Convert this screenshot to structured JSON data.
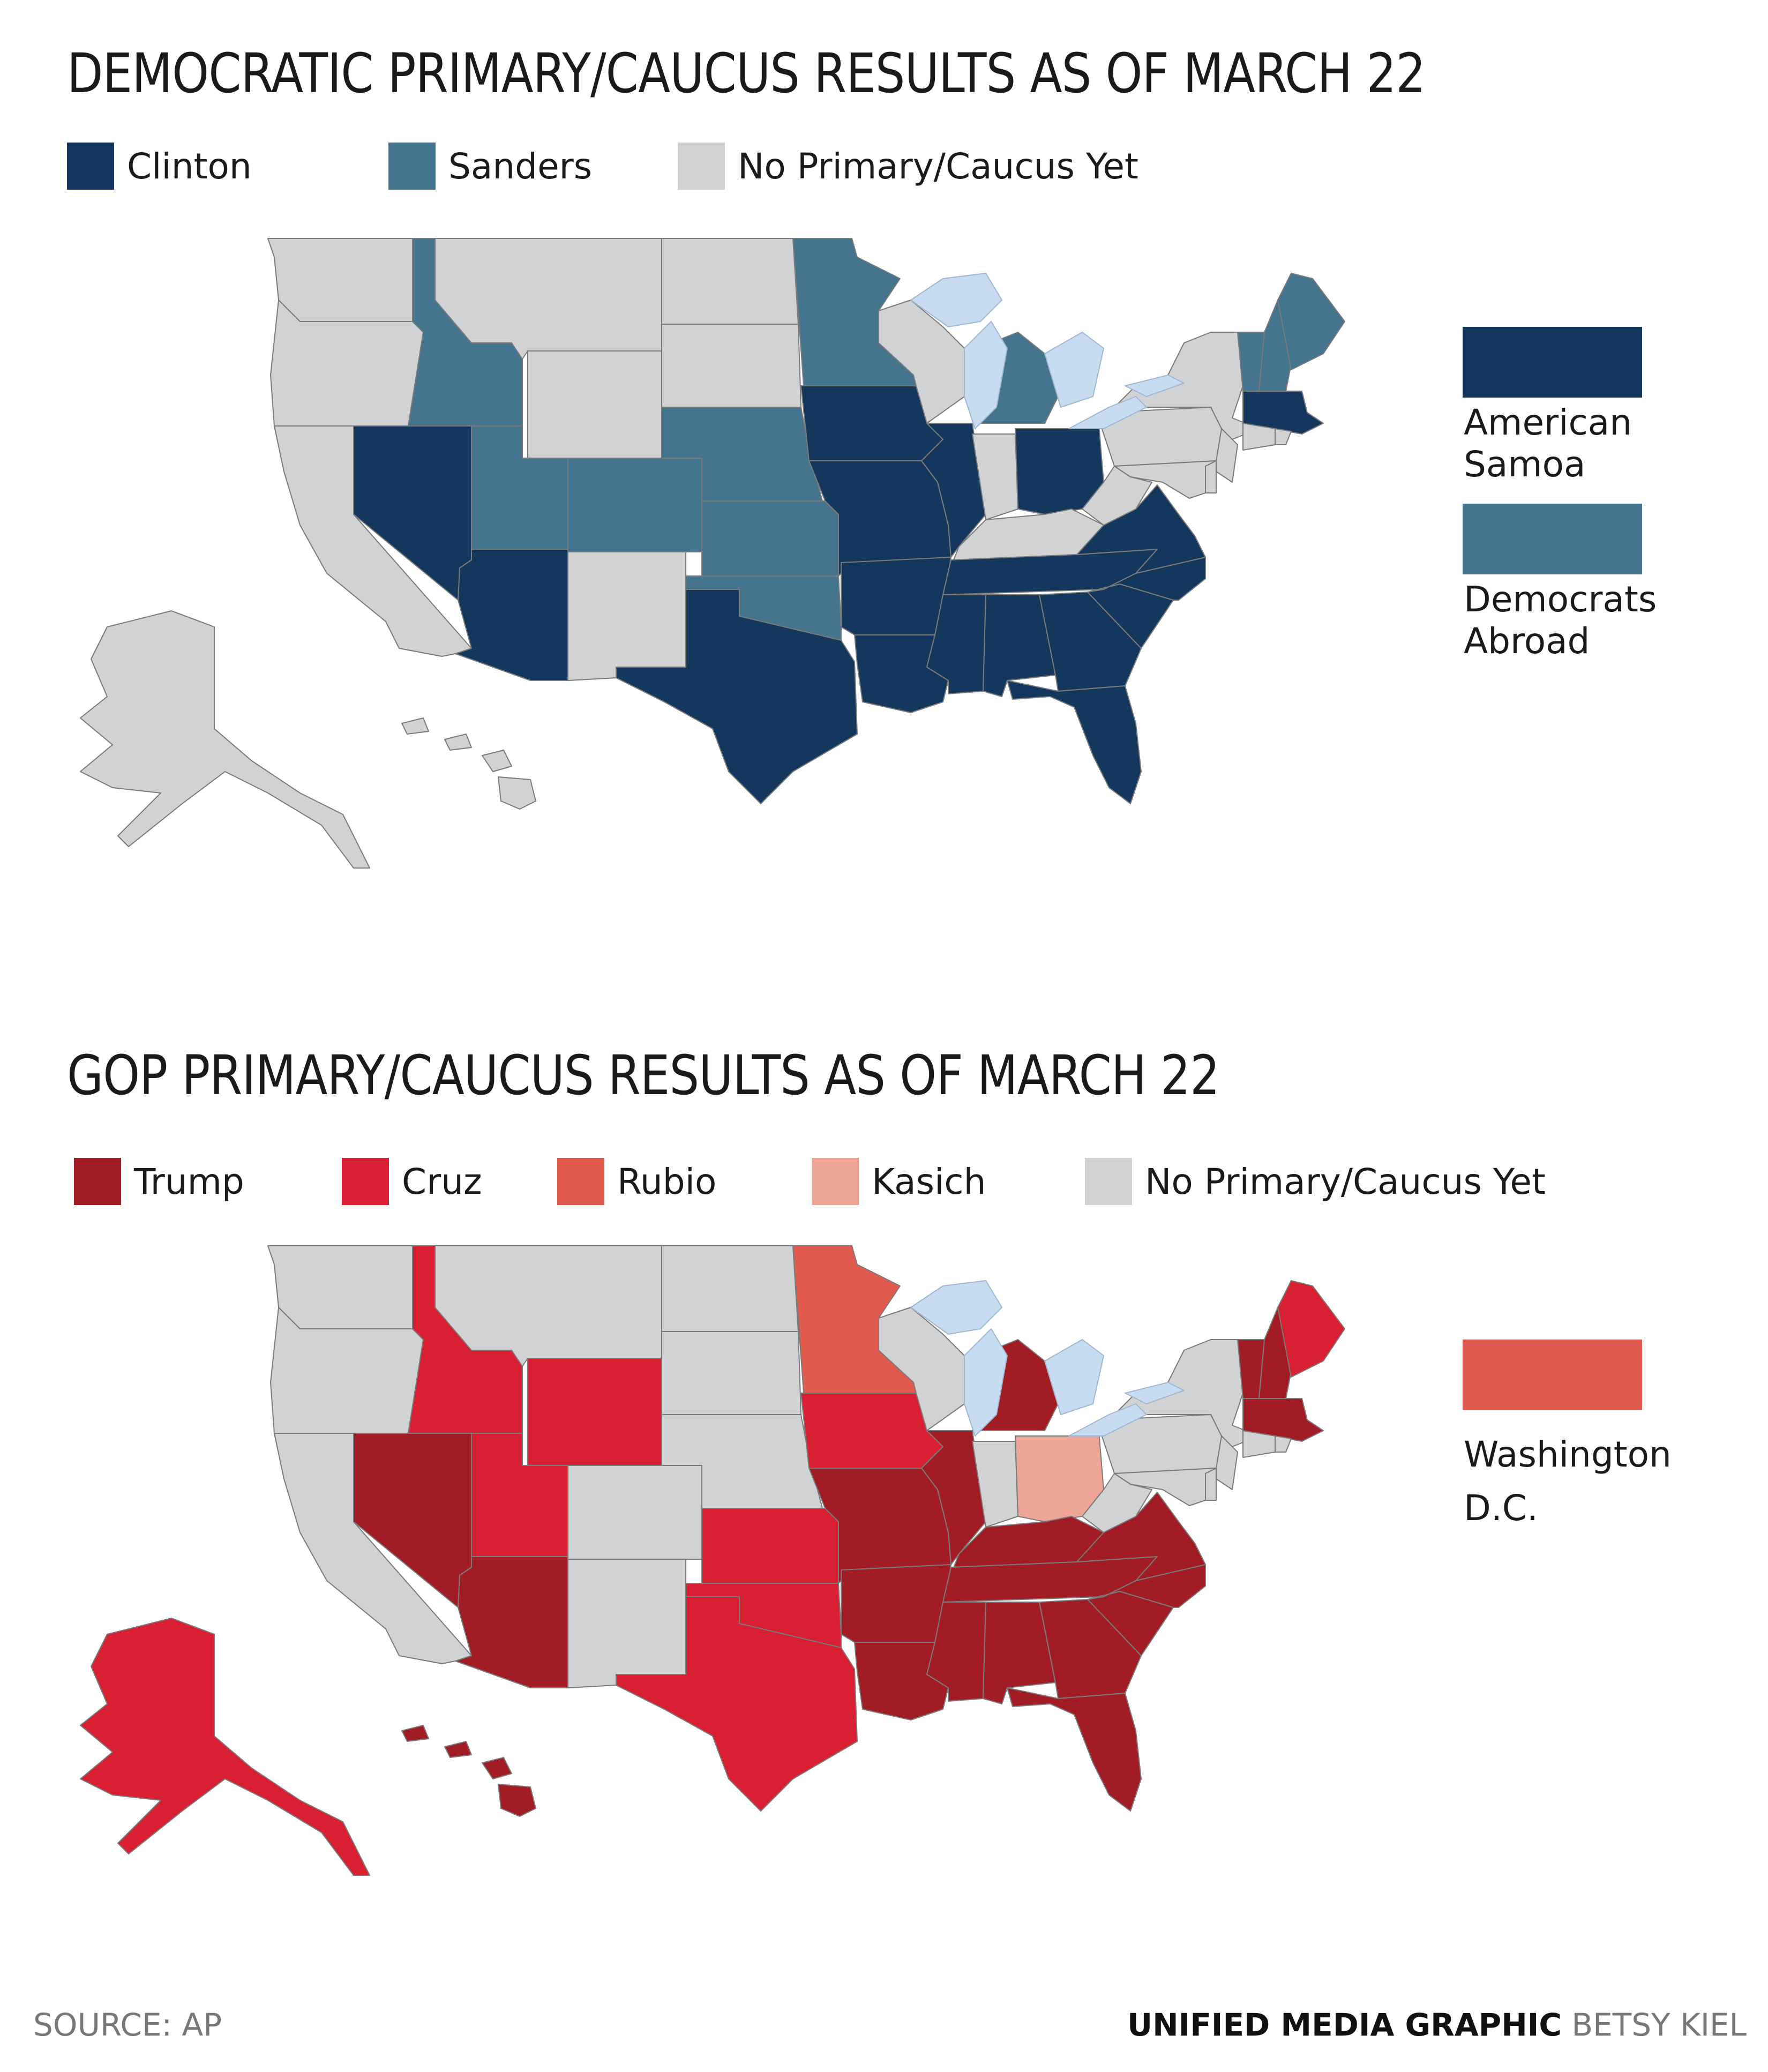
{
  "colors": {
    "clinton": "#14375e",
    "sanders": "#45758e",
    "none": "#d1d2d4",
    "trump": "#a11c24",
    "cruz": "#d91f32",
    "rubio": "#e05a4e",
    "kasich": "#efa595",
    "lake": "#c8dcf1"
  },
  "dem": {
    "title": "DEMOCRATIC PRIMARY/CAUCUS RESULTS AS OF MARCH 22",
    "legend": [
      {
        "label": "Clinton",
        "key": "clinton"
      },
      {
        "label": "Sanders",
        "key": "sanders"
      },
      {
        "label": "No Primary/Caucus Yet",
        "key": "none"
      }
    ],
    "extras": [
      {
        "label": "American\nSamoa",
        "key": "clinton"
      },
      {
        "label": "Democrats\nAbroad",
        "key": "sanders"
      }
    ],
    "results": {
      "WA": "none",
      "OR": "none",
      "CA": "none",
      "NV": "clinton",
      "ID": "sanders",
      "MT": "none",
      "WY": "none",
      "UT": "sanders",
      "AZ": "clinton",
      "CO": "sanders",
      "NM": "none",
      "ND": "none",
      "SD": "none",
      "NE": "sanders",
      "KS": "sanders",
      "OK": "sanders",
      "TX": "clinton",
      "MN": "sanders",
      "IA": "clinton",
      "MO": "clinton",
      "AR": "clinton",
      "LA": "clinton",
      "WI": "none",
      "IL": "clinton",
      "MI": "sanders",
      "IN": "none",
      "OH": "clinton",
      "KY": "none",
      "TN": "clinton",
      "MS": "clinton",
      "AL": "clinton",
      "GA": "clinton",
      "FL": "clinton",
      "SC": "clinton",
      "NC": "clinton",
      "VA": "clinton",
      "WV": "none",
      "PA": "none",
      "NY": "none",
      "VT": "sanders",
      "NH": "sanders",
      "ME": "sanders",
      "MA": "clinton",
      "NJ": "none",
      "MD": "none",
      "DE": "none",
      "CT": "none",
      "RI": "none",
      "AK": "none",
      "HI": "none"
    }
  },
  "gop": {
    "title": "GOP PRIMARY/CAUCUS RESULTS AS OF MARCH 22",
    "legend": [
      {
        "label": "Trump",
        "key": "trump"
      },
      {
        "label": "Cruz",
        "key": "cruz"
      },
      {
        "label": "Rubio",
        "key": "rubio"
      },
      {
        "label": "Kasich",
        "key": "kasich"
      },
      {
        "label": "No Primary/Caucus Yet",
        "key": "none"
      }
    ],
    "extras": [
      {
        "label": "Washington\nD.C.",
        "key": "rubio"
      }
    ],
    "results": {
      "WA": "none",
      "OR": "none",
      "CA": "none",
      "NV": "trump",
      "ID": "cruz",
      "MT": "none",
      "WY": "cruz",
      "UT": "cruz",
      "AZ": "trump",
      "CO": "none",
      "NM": "none",
      "ND": "none",
      "SD": "none",
      "NE": "none",
      "KS": "cruz",
      "OK": "cruz",
      "TX": "cruz",
      "MN": "rubio",
      "IA": "cruz",
      "MO": "trump",
      "AR": "trump",
      "LA": "trump",
      "WI": "none",
      "IL": "trump",
      "MI": "trump",
      "IN": "none",
      "OH": "kasich",
      "KY": "trump",
      "TN": "trump",
      "MS": "trump",
      "AL": "trump",
      "GA": "trump",
      "FL": "trump",
      "SC": "trump",
      "NC": "trump",
      "VA": "trump",
      "WV": "none",
      "PA": "none",
      "NY": "none",
      "VT": "trump",
      "NH": "trump",
      "ME": "cruz",
      "MA": "trump",
      "NJ": "none",
      "MD": "none",
      "DE": "none",
      "CT": "none",
      "RI": "none",
      "AK": "cruz",
      "HI": "trump"
    }
  },
  "footer": {
    "source": "SOURCE: AP",
    "credit_bold": "UNIFIED MEDIA GRAPHIC",
    "credit_name": "BETSY KIEL"
  }
}
